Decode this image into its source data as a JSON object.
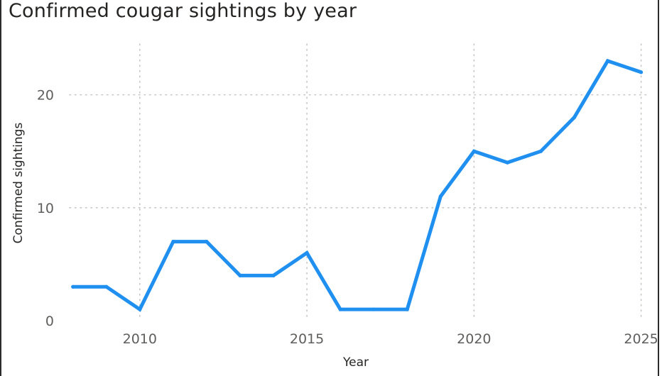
{
  "chart_data": {
    "type": "line",
    "title": "Confirmed cougar sightings by year",
    "xlabel": "Year",
    "ylabel": "Confirmed sightings",
    "x": [
      2008,
      2009,
      2010,
      2011,
      2012,
      2013,
      2014,
      2015,
      2016,
      2017,
      2018,
      2019,
      2020,
      2021,
      2022,
      2023,
      2024,
      2025
    ],
    "series": [
      {
        "values": [
          3,
          3,
          1,
          7,
          7,
          4,
          4,
          6,
          1,
          1,
          1,
          11,
          15,
          14,
          15,
          18,
          23,
          22
        ]
      }
    ],
    "x_ticks": [
      "2010",
      "2015",
      "2020",
      "2025"
    ],
    "y_ticks": [
      "0",
      "10",
      "20"
    ],
    "xlim": [
      2007.9,
      2025.2
    ],
    "ylim": [
      0,
      24.5
    ],
    "grid": true,
    "line_color": "#1f8ff0"
  }
}
